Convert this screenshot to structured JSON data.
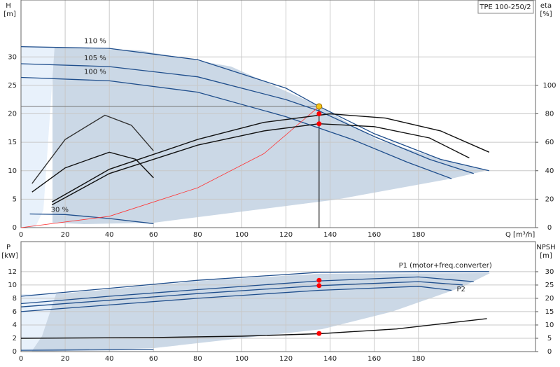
{
  "chart_data": [
    {
      "type": "line",
      "title": "TPE 100-250/2",
      "y_label": "H",
      "y_unit": "[m]",
      "y2_label": "eta",
      "y2_unit": "[%]",
      "x_label": "Q [m³/h]",
      "xlim": [
        0,
        233
      ],
      "xticks": [
        0,
        20,
        40,
        60,
        80,
        100,
        120,
        140,
        160,
        180
      ],
      "ylim": [
        0,
        40
      ],
      "yticks": [
        0,
        5,
        10,
        15,
        20,
        25,
        30
      ],
      "y2lim": [
        0,
        160
      ],
      "y2ticks": [
        0,
        20,
        40,
        60,
        80,
        100
      ],
      "grid": true,
      "duty_point": {
        "x": 135,
        "y": 21.3,
        "color": "#f5c518"
      },
      "series": [
        {
          "name": "110 %",
          "color": "#1f4e8c",
          "x": [
            0,
            40,
            80,
            120,
            135,
            160,
            190,
            212
          ],
          "values": [
            31.8,
            31.5,
            29.5,
            24.5,
            21.3,
            16.5,
            12,
            10
          ]
        },
        {
          "name": "105 %",
          "color": "#1f4e8c",
          "x": [
            0,
            40,
            80,
            120,
            135,
            160,
            185,
            205
          ],
          "values": [
            28.8,
            28.3,
            26.5,
            22.5,
            20.5,
            16,
            12,
            9.5
          ]
        },
        {
          "name": "100 %",
          "color": "#1f4e8c",
          "x": [
            0,
            40,
            80,
            120,
            150,
            175,
            195
          ],
          "values": [
            26.4,
            25.8,
            23.8,
            19.5,
            15.5,
            11.5,
            8.6
          ]
        },
        {
          "name": "30 %",
          "color": "#1f4e8c",
          "x": [
            4,
            20,
            40,
            60
          ],
          "values": [
            2.4,
            2.3,
            1.6,
            0.7
          ]
        },
        {
          "color": "#ff3333",
          "x": [
            0,
            40,
            80,
            110,
            135
          ],
          "values": [
            0,
            2,
            7,
            13,
            21.3
          ]
        },
        {
          "color": "#111111",
          "axis": "y2",
          "x": [
            14,
            40,
            80,
            110,
            135,
            160,
            185,
            203
          ],
          "values": [
            16,
            38,
            58,
            68,
            73,
            71,
            63,
            49
          ]
        },
        {
          "color": "#111111",
          "axis": "y2",
          "x": [
            14,
            40,
            80,
            110,
            140,
            165,
            190,
            212
          ],
          "values": [
            18,
            41,
            62,
            74,
            80,
            77,
            68,
            53
          ]
        },
        {
          "color": "#111111",
          "axis": "y2",
          "x": [
            5,
            20,
            40,
            52,
            60
          ],
          "values": [
            25,
            42,
            53,
            48,
            35
          ]
        },
        {
          "color": "#333333",
          "axis": "y2",
          "x": [
            5,
            20,
            38,
            50,
            60
          ],
          "values": [
            31,
            62,
            79,
            72,
            54
          ]
        },
        {
          "color": "#ff0000",
          "axis": "y2",
          "markers": true,
          "x": [
            135,
            135
          ],
          "values": [
            80,
            73
          ]
        }
      ]
    },
    {
      "type": "line",
      "y_label": "P",
      "y_unit": "[kW]",
      "y2_label": "NPSH",
      "y2_unit": "[m]",
      "xlim": [
        0,
        233
      ],
      "xticks": [
        0,
        20,
        40,
        60,
        80,
        100,
        120,
        140,
        160,
        180
      ],
      "ylim": [
        0,
        16.5
      ],
      "yticks": [
        0,
        2,
        4,
        6,
        8,
        10,
        12
      ],
      "y2lim": [
        0,
        41.3
      ],
      "y2ticks": [
        0,
        5,
        10,
        15,
        20,
        25,
        30
      ],
      "grid": true,
      "series": [
        {
          "name": "P1 (motor+freq.converter)",
          "color": "#1f4e8c",
          "x": [
            0,
            40,
            80,
            135,
            180,
            212
          ],
          "values": [
            8.3,
            9.5,
            10.7,
            11.9,
            12.0,
            12.0
          ]
        },
        {
          "color": "#1f4e8c",
          "x": [
            0,
            40,
            80,
            135,
            180,
            205
          ],
          "values": [
            7.2,
            8.3,
            9.3,
            10.6,
            11.2,
            10.5
          ]
        },
        {
          "name": "P2",
          "color": "#1f4e8c",
          "x": [
            0,
            40,
            80,
            135,
            180,
            200
          ],
          "values": [
            6.7,
            7.7,
            8.7,
            9.9,
            10.5,
            10.0
          ]
        },
        {
          "color": "#1f4e8c",
          "x": [
            0,
            40,
            80,
            135,
            180,
            195
          ],
          "values": [
            6.0,
            7.0,
            8.0,
            9.2,
            9.8,
            9.2
          ]
        },
        {
          "color": "#1f4e8c",
          "x": [
            0,
            60
          ],
          "values": [
            0.2,
            0.3
          ]
        },
        {
          "color": "#111111",
          "axis": "y2",
          "x": [
            0,
            60,
            100,
            135,
            170,
            211
          ],
          "values": [
            5,
            5.3,
            5.8,
            6.7,
            8.5,
            12.4
          ]
        },
        {
          "color": "#ff0000",
          "markers": true,
          "x": [
            135,
            135
          ],
          "values": [
            10.7,
            9.9
          ]
        },
        {
          "color": "#ff0000",
          "axis": "y2",
          "markers": true,
          "x": [
            135
          ],
          "values": [
            6.8
          ]
        }
      ]
    }
  ]
}
